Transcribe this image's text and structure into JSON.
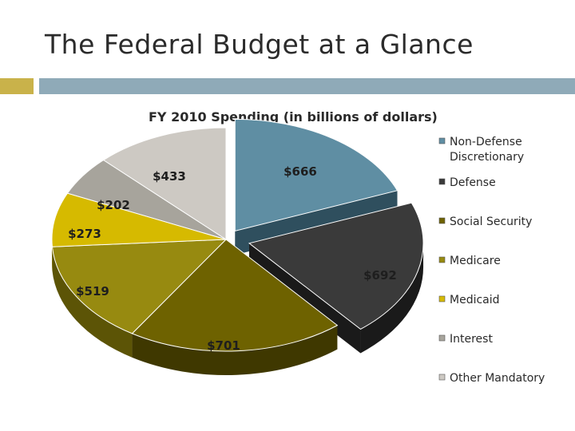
{
  "slide": {
    "title": "The Federal Budget at a Glance"
  },
  "colors": {
    "accent_left": "#c9b24a",
    "accent_right": "#8faab8"
  },
  "chart_data": {
    "type": "pie",
    "title": "FY 2010 Spending (in billions of dollars)",
    "legend_position": "right",
    "slices": [
      {
        "name": "Non-Defense Discretionary",
        "legend_lines": [
          "Non-Defense",
          "Discretionary"
        ],
        "value": 666,
        "label": "$666",
        "color": "#5f8ea3",
        "side_color": "#2f4f5e"
      },
      {
        "name": "Defense",
        "legend_lines": [
          "Defense"
        ],
        "value": 692,
        "label": "$692",
        "color": "#3a3a3a",
        "side_color": "#1a1a1a"
      },
      {
        "name": "Social Security",
        "legend_lines": [
          "Social Security"
        ],
        "value": 701,
        "label": "$701",
        "color": "#6e6200",
        "side_color": "#3f3800"
      },
      {
        "name": "Medicare",
        "legend_lines": [
          "Medicare"
        ],
        "value": 519,
        "label": "$519",
        "color": "#978a10",
        "side_color": "#5c5406"
      },
      {
        "name": "Medicaid",
        "legend_lines": [
          "Medicaid"
        ],
        "value": 273,
        "label": "$273",
        "color": "#d6ba00",
        "side_color": "#8f7d00"
      },
      {
        "name": "Interest",
        "legend_lines": [
          "Interest"
        ],
        "value": 202,
        "label": "$202",
        "color": "#a7a49c",
        "side_color": "#6e6b65"
      },
      {
        "name": "Other Mandatory",
        "legend_lines": [
          "Other Mandatory"
        ],
        "value": 433,
        "label": "$433",
        "color": "#cdc9c3",
        "side_color": "#8e8a85"
      }
    ]
  }
}
